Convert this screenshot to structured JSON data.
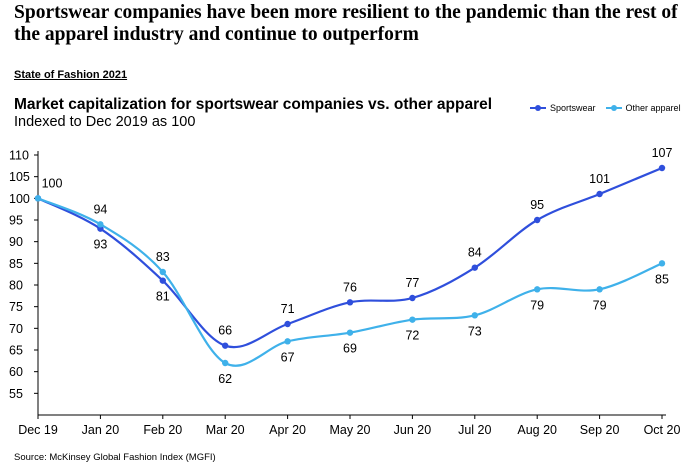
{
  "headline": "Sportswear companies have been more resilient to the pandemic than the rest of the apparel industry and continue to outperform",
  "kicker": "State of Fashion 2021",
  "source": "Source: McKinsey Global Fashion Index (MGFI)",
  "colors": {
    "sportswear": "#2f4fdc",
    "other": "#3fb1ea",
    "axis": "#000000"
  },
  "chart_data": {
    "type": "line",
    "title": "Market capitalization for sportswear companies vs. other apparel",
    "subtitle": "Indexed to Dec 2019 as 100",
    "categories": [
      "Dec 19",
      "Jan 20",
      "Feb 20",
      "Mar 20",
      "Apr 20",
      "May 20",
      "Jun 20",
      "Jul 20",
      "Aug 20",
      "Sep 20",
      "Oct 20"
    ],
    "yticks": [
      55,
      60,
      65,
      70,
      75,
      80,
      85,
      90,
      95,
      100,
      105,
      110
    ],
    "ylim": [
      50,
      110
    ],
    "xlabel": "",
    "ylabel": "",
    "legend_position": "top-right",
    "grid": false,
    "series": [
      {
        "name": "Sportswear",
        "values": [
          100,
          93,
          81,
          66,
          71,
          76,
          77,
          84,
          95,
          101,
          107
        ],
        "labels": [
          "100",
          "93",
          "81",
          "66",
          "71",
          "76",
          "77",
          "84",
          "95",
          "101",
          "107"
        ]
      },
      {
        "name": "Other apparel",
        "values": [
          100,
          94,
          83,
          62,
          67,
          69,
          72,
          73,
          79,
          79,
          85
        ],
        "labels": [
          "",
          "94",
          "83",
          "62",
          "67",
          "69",
          "72",
          "73",
          "79",
          "79",
          "85"
        ]
      }
    ]
  }
}
